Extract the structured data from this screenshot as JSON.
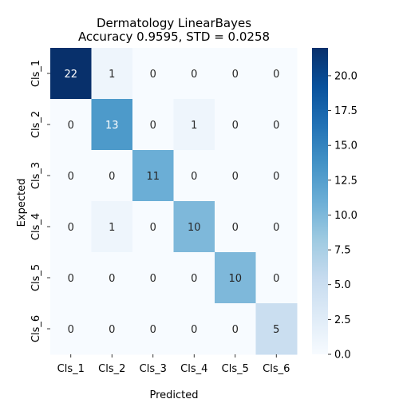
{
  "chart_data": {
    "type": "heatmap",
    "title_lines": [
      "Dermatology LinearBayes",
      "Accuracy 0.9595, STD = 0.0258"
    ],
    "xlabel": "Predicted",
    "ylabel": "Expected",
    "x_categories": [
      "Cls_1",
      "Cls_2",
      "Cls_3",
      "Cls_4",
      "Cls_5",
      "Cls_6"
    ],
    "y_categories": [
      "Cls_1",
      "Cls_2",
      "Cls_3",
      "Cls_4",
      "Cls_5",
      "Cls_6"
    ],
    "matrix": [
      [
        22,
        1,
        0,
        0,
        0,
        0
      ],
      [
        0,
        13,
        0,
        1,
        0,
        0
      ],
      [
        0,
        0,
        11,
        0,
        0,
        0
      ],
      [
        0,
        1,
        0,
        10,
        0,
        0
      ],
      [
        0,
        0,
        0,
        0,
        10,
        0
      ],
      [
        0,
        0,
        0,
        0,
        0,
        5
      ]
    ],
    "colormap": "Blues",
    "vmin": 0,
    "vmax": 22,
    "colorbar_ticks": [
      "0.0",
      "2.5",
      "5.0",
      "7.5",
      "10.0",
      "12.5",
      "15.0",
      "17.5",
      "20.0"
    ],
    "grid": false
  }
}
